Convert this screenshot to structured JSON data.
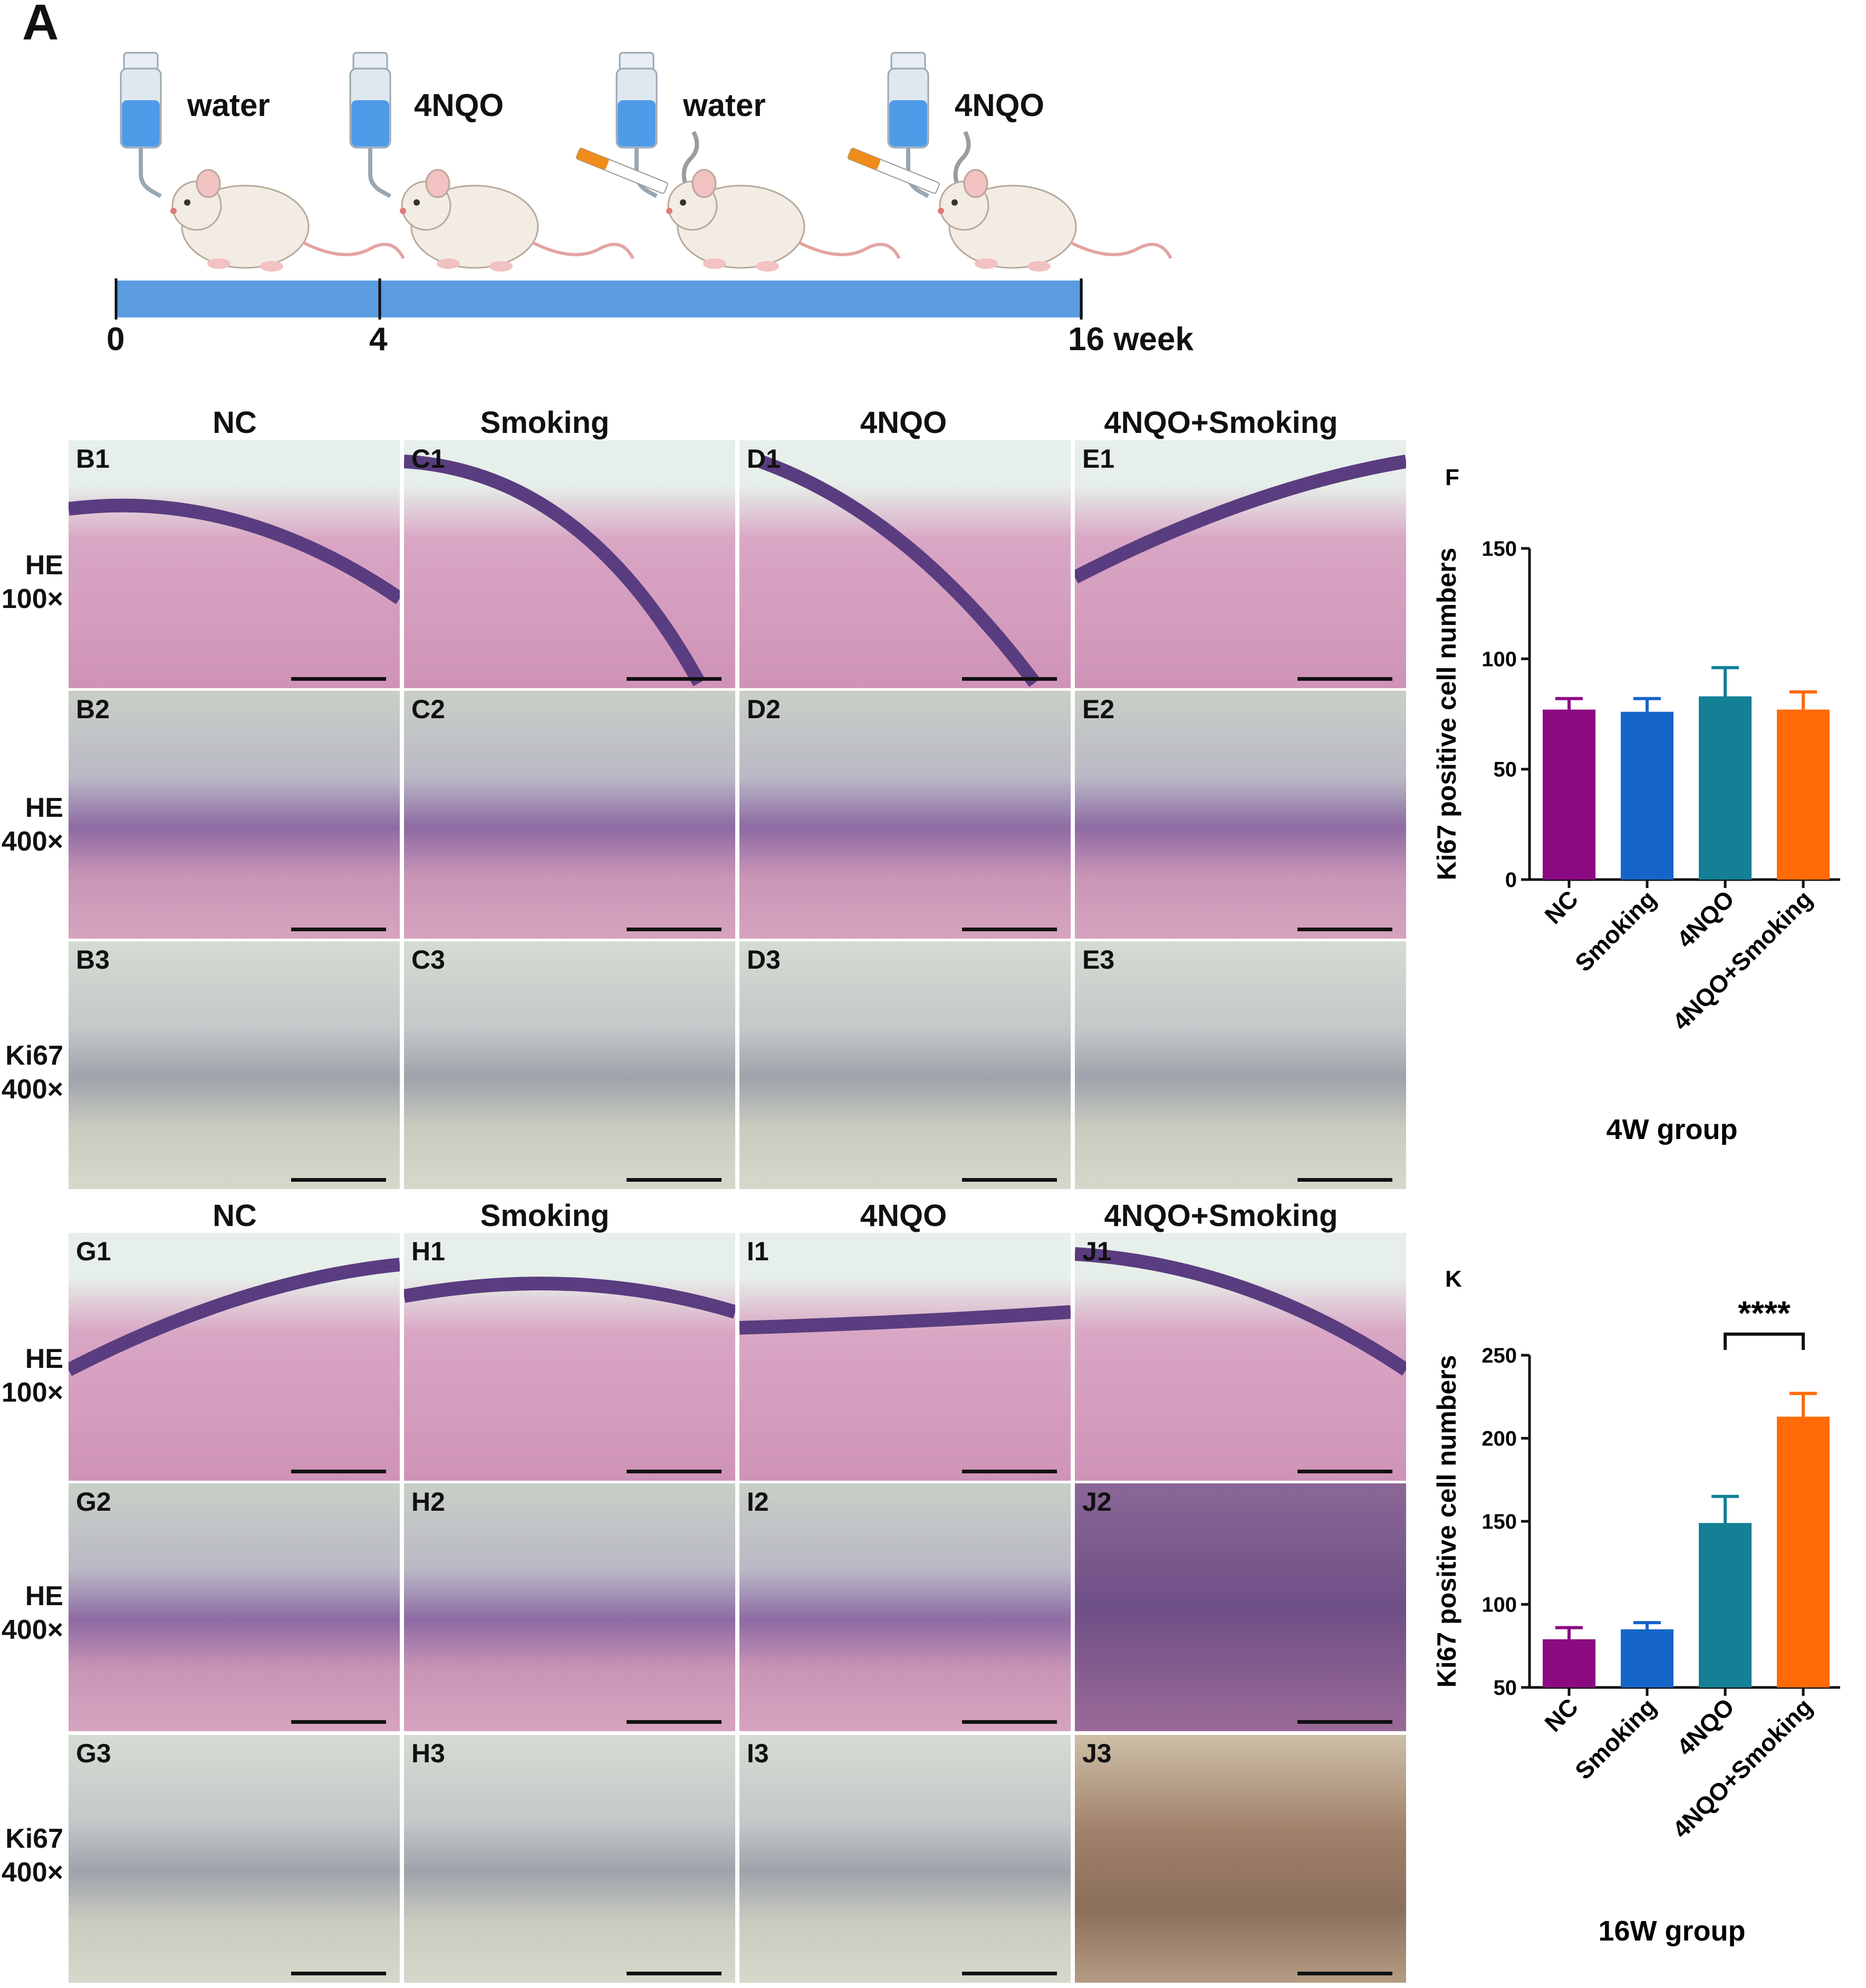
{
  "panel_a": {
    "letter": "A",
    "treatments": [
      "water",
      "4NQO",
      "water",
      "4NQO"
    ],
    "timeline_ticks": [
      "0",
      "4",
      "16 week"
    ]
  },
  "grid_top": {
    "columns": [
      "NC",
      "Smoking",
      "4NQO",
      "4NQO+Smoking"
    ],
    "row_labels": [
      {
        "stain": "HE",
        "mag": "100×"
      },
      {
        "stain": "HE",
        "mag": "400×"
      },
      {
        "stain": "Ki67",
        "mag": "400×"
      }
    ],
    "codes": [
      [
        "B1",
        "C1",
        "D1",
        "E1"
      ],
      [
        "B2",
        "C2",
        "D2",
        "E2"
      ],
      [
        "B3",
        "C3",
        "D3",
        "E3"
      ]
    ]
  },
  "grid_bottom": {
    "columns": [
      "NC",
      "Smoking",
      "4NQO",
      "4NQO+Smoking"
    ],
    "row_labels": [
      {
        "stain": "HE",
        "mag": "100×"
      },
      {
        "stain": "HE",
        "mag": "400×"
      },
      {
        "stain": "Ki67",
        "mag": "400×"
      }
    ],
    "codes": [
      [
        "G1",
        "H1",
        "I1",
        "J1"
      ],
      [
        "G2",
        "H2",
        "I2",
        "J2"
      ],
      [
        "G3",
        "H3",
        "I3",
        "J3"
      ]
    ]
  },
  "chart_data": [
    {
      "panel": "F",
      "type": "bar",
      "categories": [
        "NC",
        "Smoking",
        "4NQO",
        "4NQO+Smoking"
      ],
      "values": [
        77,
        76,
        83,
        77
      ],
      "errors": [
        5,
        6,
        13,
        8
      ],
      "colors": [
        "#8b0a82",
        "#1565c8",
        "#138096",
        "#ff6a06"
      ],
      "ylabel": "Ki67 positive cell numbers",
      "xlabel": "4W group",
      "ylim": [
        0,
        150
      ],
      "yticks": [
        "0",
        "50",
        "100",
        "150"
      ],
      "significance": null
    },
    {
      "panel": "K",
      "type": "bar",
      "categories": [
        "NC",
        "Smoking",
        "4NQO",
        "4NQO+Smoking"
      ],
      "values": [
        79,
        85,
        149,
        213
      ],
      "errors": [
        7,
        4,
        16,
        14
      ],
      "colors": [
        "#8b0a82",
        "#1565c8",
        "#138096",
        "#ff6a06"
      ],
      "ylabel": "Ki67 positive cell numbers",
      "xlabel": "16W  group",
      "ylim": [
        50,
        250
      ],
      "yticks": [
        "50",
        "100",
        "150",
        "200",
        "250"
      ],
      "significance": "****"
    }
  ]
}
